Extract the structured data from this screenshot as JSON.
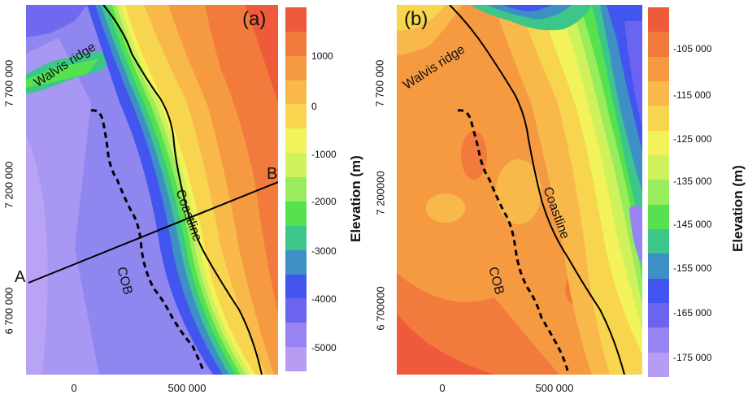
{
  "panel_a": {
    "tag": "(a)",
    "labels": {
      "ridge": "Walvis ridge",
      "coastline": "Coastline",
      "cob": "COB",
      "point_a": "A",
      "point_b": "B"
    },
    "y_ticks": [
      "7 700 000",
      "7 200 000",
      "6 700 000"
    ],
    "x_ticks": [
      "0",
      "500 000"
    ],
    "colorbar": {
      "title": "Elevation (m)",
      "labels": [
        "1000",
        "0",
        "-1000",
        "-2000",
        "-3000",
        "-4000",
        "-5000"
      ],
      "colors": [
        "#ee5a3a",
        "#f27a3c",
        "#f69a42",
        "#f8b94a",
        "#f7d54f",
        "#f2f25a",
        "#cff25c",
        "#99ec5c",
        "#55e24e",
        "#3cc68a",
        "#3e8fc6",
        "#4256ef",
        "#6a64f0",
        "#9784f2",
        "#b79cf3"
      ]
    }
  },
  "panel_b": {
    "tag": "(b)",
    "labels": {
      "ridge": "Walvis ridge",
      "coastline": "Coastline",
      "cob": "COB"
    },
    "y_ticks": [
      "7 700 000",
      "7 200000",
      "6 700000"
    ],
    "x_ticks": [
      "0",
      "500 000"
    ],
    "colorbar": {
      "title": "Elevation (m)",
      "labels": [
        "-105 000",
        "-115 000",
        "-125 000",
        "-135 000",
        "-145 000",
        "-155 000",
        "-165 000",
        "-175 000"
      ],
      "colors": [
        "#ee5a3a",
        "#f27a3c",
        "#f69a42",
        "#f8b94a",
        "#f7d54f",
        "#f2f25a",
        "#cff25c",
        "#99ec5c",
        "#55e24e",
        "#3cc68a",
        "#3e8fc6",
        "#4256ef",
        "#6a64f0",
        "#9784f2",
        "#b79cf3"
      ]
    }
  }
}
